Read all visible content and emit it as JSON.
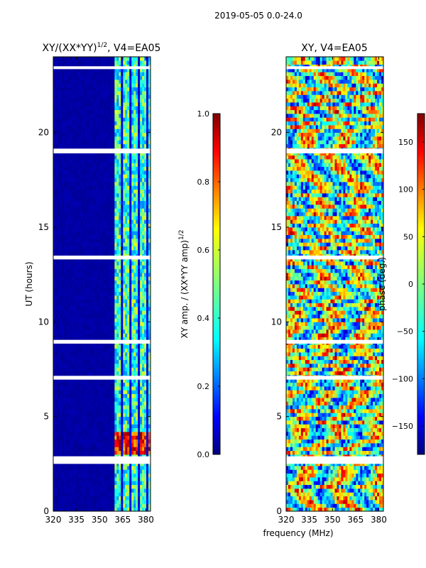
{
  "figure_title": "2019-05-05 0.0-24.0",
  "shared_xlabel": "frequency (MHz)",
  "colors": {
    "background": "#ffffff",
    "jet_stops": [
      "#00007f",
      "#0000ff",
      "#007fff",
      "#00ffff",
      "#7fff7f",
      "#ffff00",
      "#ff7f00",
      "#ff0000",
      "#7f0000"
    ]
  },
  "chart_data": [
    {
      "type": "heatmap",
      "title": "XY/(XX*YY)",
      "title_superscript": "1/2",
      "title_suffix": ", V4=EA05",
      "xlabel": "",
      "ylabel": "UT (hours)",
      "xlim": [
        320,
        383
      ],
      "ylim": [
        0,
        24
      ],
      "xticks": [
        "320",
        "335",
        "350",
        "365",
        "380"
      ],
      "xtick_values": [
        320,
        335,
        350,
        365,
        380
      ],
      "yticks": [
        "0",
        "5",
        "10",
        "15",
        "20"
      ],
      "ytick_values": [
        0,
        5,
        10,
        15,
        20
      ],
      "colorbar": {
        "label": "XY amp. / (XX*YY amp)",
        "label_superscript": "1/2",
        "range": [
          0.0,
          1.0
        ],
        "ticks": [
          "0.0",
          "0.2",
          "0.4",
          "0.6",
          "0.8",
          "1.0"
        ],
        "tick_values": [
          0.0,
          0.2,
          0.4,
          0.6,
          0.8,
          1.0
        ]
      },
      "gaps_hours": [
        [
          2.5,
          2.9
        ],
        [
          6.95,
          7.15
        ],
        [
          8.85,
          9.05
        ],
        [
          13.3,
          13.5
        ],
        [
          18.9,
          19.15
        ],
        [
          23.35,
          23.5
        ]
      ]
    },
    {
      "type": "heatmap",
      "title": "XY, V4=EA05",
      "xlabel": "",
      "ylabel": "",
      "xlim": [
        320,
        383
      ],
      "ylim": [
        0,
        24
      ],
      "xticks": [
        "320",
        "335",
        "350",
        "365",
        "380"
      ],
      "xtick_values": [
        320,
        335,
        350,
        365,
        380
      ],
      "yticks": [
        "0",
        "5",
        "10",
        "15",
        "20"
      ],
      "ytick_values": [
        0,
        5,
        10,
        15,
        20
      ],
      "colorbar": {
        "label": "phase (deg.)",
        "range": [
          -180,
          180
        ],
        "ticks": [
          "−150",
          "−100",
          "−50",
          "0",
          "50",
          "100",
          "150"
        ],
        "tick_values": [
          -150,
          -100,
          -50,
          0,
          50,
          100,
          150
        ]
      },
      "gaps_hours": [
        [
          2.5,
          2.9
        ],
        [
          6.95,
          7.15
        ],
        [
          8.85,
          9.05
        ],
        [
          13.3,
          13.5
        ],
        [
          18.9,
          19.15
        ],
        [
          23.35,
          23.5
        ]
      ]
    }
  ]
}
